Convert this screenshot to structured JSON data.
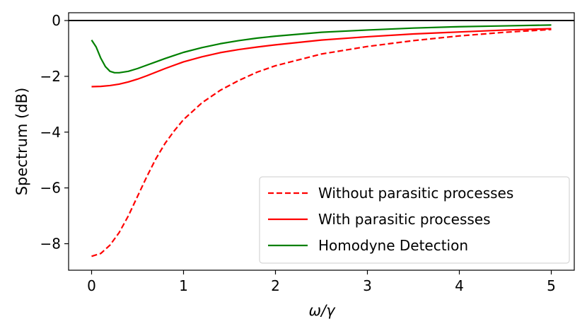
{
  "chart_data": {
    "type": "line",
    "xlabel": "ω/γ",
    "ylabel": "Spectrum (dB)",
    "xlim": [
      -0.25,
      5.25
    ],
    "ylim": [
      -8.95,
      0.28
    ],
    "xticks": [
      0,
      1,
      2,
      3,
      4,
      5
    ],
    "yticks": [
      0,
      -2,
      -4,
      -6,
      -8
    ],
    "xtick_labels": [
      "0",
      "1",
      "2",
      "3",
      "4",
      "5"
    ],
    "ytick_labels": [
      "0",
      "−2",
      "−4",
      "−6",
      "−8"
    ],
    "grid": false,
    "legend_position": "bottom-right",
    "reference_line": {
      "y": 0,
      "color": "#000000"
    },
    "series": [
      {
        "name": "Without parasitic processes",
        "color": "#ff0000",
        "style": "dashed",
        "x": [
          0,
          0.1,
          0.2,
          0.3,
          0.4,
          0.5,
          0.6,
          0.7,
          0.8,
          0.9,
          1.0,
          1.2,
          1.4,
          1.6,
          1.8,
          2.0,
          2.5,
          3.0,
          3.5,
          4.0,
          4.5,
          5.0
        ],
        "y": [
          -8.45,
          -8.35,
          -8.05,
          -7.6,
          -7.0,
          -6.3,
          -5.6,
          -4.95,
          -4.4,
          -3.95,
          -3.55,
          -2.95,
          -2.5,
          -2.15,
          -1.85,
          -1.62,
          -1.2,
          -0.93,
          -0.72,
          -0.55,
          -0.42,
          -0.32
        ]
      },
      {
        "name": "With parasitic processes",
        "color": "#ff0000",
        "style": "solid",
        "x": [
          0,
          0.1,
          0.2,
          0.3,
          0.4,
          0.5,
          0.6,
          0.7,
          0.8,
          0.9,
          1.0,
          1.2,
          1.4,
          1.6,
          1.8,
          2.0,
          2.5,
          3.0,
          3.5,
          4.0,
          4.5,
          5.0
        ],
        "y": [
          -2.37,
          -2.36,
          -2.33,
          -2.28,
          -2.2,
          -2.1,
          -1.98,
          -1.85,
          -1.72,
          -1.6,
          -1.48,
          -1.3,
          -1.15,
          -1.04,
          -0.95,
          -0.87,
          -0.7,
          -0.58,
          -0.48,
          -0.41,
          -0.34,
          -0.29
        ]
      },
      {
        "name": "Homodyne Detection",
        "color": "#008000",
        "style": "solid",
        "x": [
          0,
          0.05,
          0.1,
          0.15,
          0.2,
          0.25,
          0.3,
          0.4,
          0.5,
          0.6,
          0.7,
          0.8,
          0.9,
          1.0,
          1.2,
          1.4,
          1.6,
          1.8,
          2.0,
          2.5,
          3.0,
          3.5,
          4.0,
          4.5,
          5.0
        ],
        "y": [
          -0.7,
          -0.95,
          -1.35,
          -1.65,
          -1.82,
          -1.87,
          -1.87,
          -1.82,
          -1.72,
          -1.6,
          -1.48,
          -1.36,
          -1.25,
          -1.14,
          -0.97,
          -0.83,
          -0.72,
          -0.63,
          -0.56,
          -0.42,
          -0.34,
          -0.27,
          -0.22,
          -0.19,
          -0.16
        ]
      }
    ]
  }
}
